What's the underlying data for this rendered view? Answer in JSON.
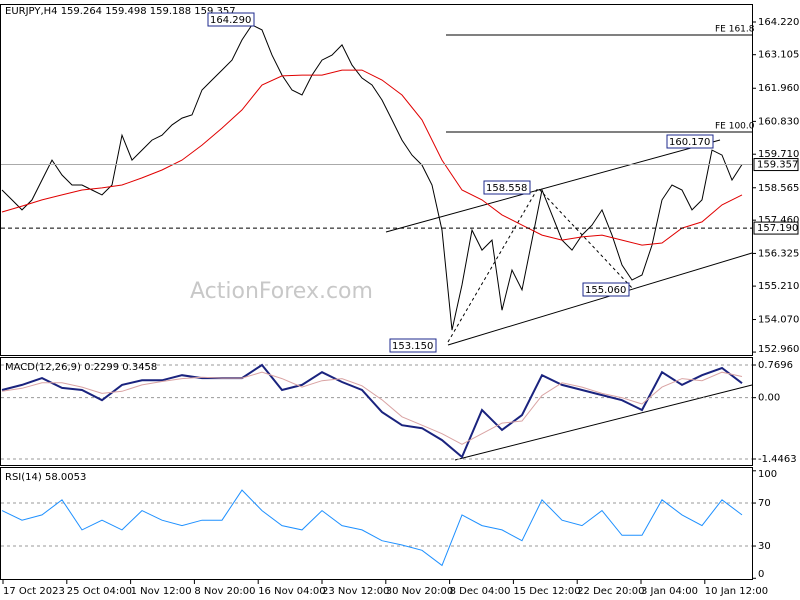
{
  "header": "EURJPY,H4 159.264 159.498 159.188 159.357",
  "watermark": "ActionForex.com",
  "x_axis_labels": [
    "17 Oct 2023",
    "25 Oct 04:00",
    "1 Nov 12:00",
    "8 Nov 20:00",
    "16 Nov 04:00",
    "23 Nov 12:00",
    "30 Nov 20:00",
    "8 Dec 04:00",
    "15 Dec 12:00",
    "22 Dec 20:00",
    "3 Jan 04:00",
    "10 Jan 12:00"
  ],
  "chart_data": [
    {
      "type": "line",
      "ylim": [
        152.86,
        164.8
      ],
      "yticks": [
        {
          "value": 164.22,
          "label": "164.220"
        },
        163.105,
        {
          "value": 161.96,
          "label": "161.960"
        },
        {
          "value": 160.83,
          "label": "160.830"
        },
        {
          "value": 159.71,
          "label": "159.710"
        },
        158.565,
        {
          "value": 157.46,
          "label": "157.460"
        },
        156.325,
        {
          "value": 155.21,
          "label": "155.210"
        },
        {
          "value": 154.07,
          "label": "154.070"
        },
        {
          "value": 152.96,
          "label": "152.960"
        }
      ],
      "series": [
        {
          "color": "#000000",
          "values": [
            158.49,
            158.15,
            157.81,
            158.15,
            158.83,
            159.51,
            159.0,
            158.66,
            158.66,
            158.49,
            158.32,
            158.66,
            160.36,
            159.51,
            159.85,
            160.19,
            160.36,
            160.71,
            160.94,
            161.05,
            161.9,
            162.24,
            162.58,
            162.92,
            163.61,
            164.12,
            163.95,
            163.09,
            162.41,
            161.9,
            161.73,
            162.41,
            162.92,
            163.09,
            163.44,
            162.75,
            162.31,
            162.07,
            161.56,
            160.88,
            160.19,
            159.68,
            159.34,
            158.66,
            157.12,
            153.71,
            155.25,
            157.12,
            156.44,
            156.78,
            154.39,
            155.76,
            155.08,
            156.78,
            158.49,
            157.64,
            156.78,
            156.44,
            156.95,
            157.29,
            157.81,
            156.95,
            155.93,
            155.42,
            155.59,
            156.61,
            158.15,
            158.66,
            158.49,
            157.81,
            158.15,
            159.85,
            159.68,
            158.83,
            159.36
          ]
        },
        {
          "color": "#e00000",
          "values": [
            157.74,
            157.94,
            158.15,
            158.32,
            158.49,
            158.56,
            158.66,
            158.9,
            159.17,
            159.51,
            160.02,
            160.6,
            161.22,
            162.07,
            162.38,
            162.41,
            162.41,
            162.58,
            162.58,
            162.24,
            161.73,
            160.88,
            159.51,
            158.49,
            158.15,
            157.64,
            157.29,
            156.95,
            156.78,
            156.89,
            156.95,
            156.78,
            156.61,
            156.68,
            157.19,
            157.4,
            157.98,
            158.32
          ]
        }
      ],
      "price_labels": [
        {
          "value": 159.357,
          "label": "159.357"
        },
        {
          "value": 157.19,
          "label": "157.190"
        }
      ],
      "annotations": [
        "164.290",
        "153.150",
        "158.558",
        "155.060",
        "160.170",
        "FE 161.8",
        "FE 100.0"
      ]
    },
    {
      "type": "line",
      "title": "MACD(12,26,9) 0.2299 0.3458",
      "ylim": [
        -1.611,
        0.935
      ],
      "yticks": [
        0.7696,
        {
          "value": 0,
          "label": "0.00"
        },
        -1.4463
      ],
      "series": [
        {
          "color": "#1a237e",
          "values": [
            0.18,
            0.3,
            0.46,
            0.23,
            0.18,
            -0.06,
            0.3,
            0.41,
            0.41,
            0.53,
            0.46,
            0.46,
            0.46,
            0.77,
            0.18,
            0.3,
            0.6,
            0.37,
            0.18,
            -0.34,
            -0.65,
            -0.72,
            -1.0,
            -1.4,
            -0.29,
            -0.76,
            -0.41,
            0.53,
            0.3,
            0.18,
            0.06,
            -0.06,
            -0.29,
            0.6,
            0.3,
            0.53,
            0.7,
            0.34
          ]
        },
        {
          "color": "#d9a3a3",
          "values": [
            0.15,
            0.22,
            0.35,
            0.35,
            0.25,
            0.1,
            0.15,
            0.3,
            0.38,
            0.45,
            0.48,
            0.46,
            0.46,
            0.6,
            0.45,
            0.25,
            0.4,
            0.45,
            0.28,
            -0.05,
            -0.45,
            -0.65,
            -0.85,
            -1.1,
            -0.85,
            -0.6,
            -0.55,
            0.05,
            0.35,
            0.25,
            0.1,
            0.0,
            -0.15,
            0.25,
            0.45,
            0.4,
            0.6,
            0.5
          ]
        }
      ]
    },
    {
      "type": "line",
      "title": "RSI(14) 58.0053",
      "ylim": [
        -1.6,
        102.6
      ],
      "yticks": [
        100,
        70,
        30,
        0
      ],
      "series": [
        {
          "color": "#1e90ff",
          "values": [
            63,
            54,
            59,
            73,
            45,
            54,
            45,
            63,
            54,
            49,
            54,
            54,
            82,
            63,
            49,
            45,
            63,
            49,
            45,
            35,
            31,
            26,
            12,
            59,
            49,
            45,
            35,
            73,
            54,
            49,
            63,
            40,
            40,
            73,
            59,
            49,
            73,
            59
          ]
        }
      ]
    }
  ]
}
